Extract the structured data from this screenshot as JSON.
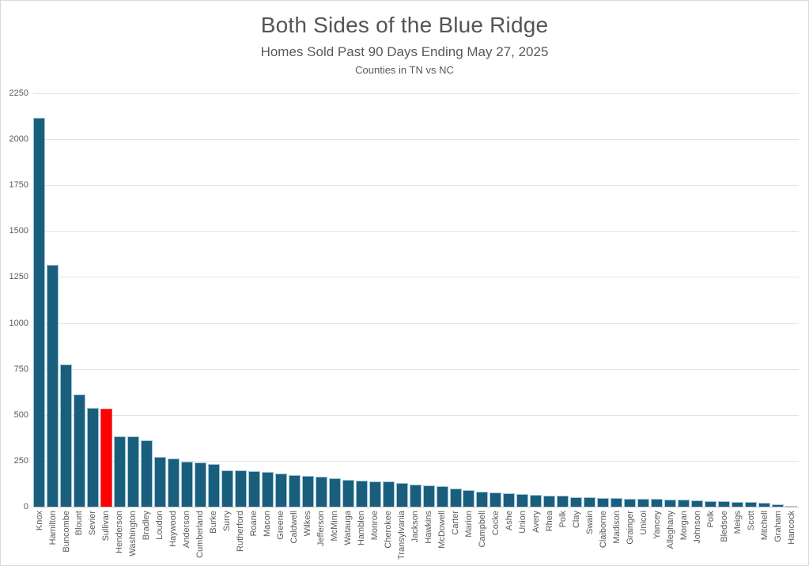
{
  "header": {
    "title": "Both Sides of the Blue Ridge",
    "subtitle": "Homes Sold Past 90 Days Ending May 27, 2025",
    "subtitle2": "Counties in TN vs NC"
  },
  "colors": {
    "bar_fill": "#1A5E7D",
    "bar_border": "#9EC5D6",
    "highlight_fill": "#FF0000",
    "gridline": "#E3E3E3",
    "axis_line": "#C9C9C9",
    "text": "#595959",
    "background": "#FFFFFF"
  },
  "chart_data": {
    "type": "bar",
    "title": "Both Sides of the Blue Ridge",
    "subtitle": "Homes Sold Past 90 Days Ending May 27, 2025",
    "note": "Counties in TN vs NC",
    "xlabel": "",
    "ylabel": "",
    "ylim": [
      0,
      2250
    ],
    "yticks": [
      0,
      250,
      500,
      750,
      1000,
      1250,
      1500,
      1750,
      2000,
      2250
    ],
    "grid": "horizontal",
    "legend_position": "none",
    "highlighted_category": "Sullivan",
    "highlight_index": 5,
    "categories": [
      "Knox",
      "Hamilton",
      "Buncombe",
      "Blount",
      "Sevier",
      "Sullivan",
      "Henderson",
      "Washington",
      "Bradley",
      "Loudon",
      "Haywood",
      "Anderson",
      "Cumberland",
      "Burke",
      "Surry",
      "Rutherford",
      "Roane",
      "Macon",
      "Greene",
      "Caldwell",
      "Wilkes",
      "Jefferson",
      "McMinn",
      "Watauga",
      "Hamblen",
      "Monroe",
      "Cherokee",
      "Transylvania",
      "Jackson",
      "Hawkins",
      "McDowell",
      "Carter",
      "Marion",
      "Campbell",
      "Cocke",
      "Ashe",
      "Union",
      "Avery",
      "Rhea",
      "Polk",
      "Clay",
      "Swain",
      "Claiborne",
      "Madison",
      "Grainger",
      "Unicoi",
      "Yancey",
      "Alleghany",
      "Morgan",
      "Johnson",
      "Polk",
      "Bledsoe",
      "Meigs",
      "Scott",
      "Mitchell",
      "Graham",
      "Hancock"
    ],
    "values": [
      2115,
      1315,
      775,
      610,
      536,
      533,
      385,
      382,
      360,
      270,
      262,
      246,
      241,
      232,
      200,
      196,
      192,
      188,
      180,
      173,
      166,
      164,
      153,
      146,
      141,
      140,
      138,
      128,
      121,
      117,
      110,
      99,
      89,
      83,
      79,
      75,
      67,
      65,
      62,
      60,
      53,
      51,
      49,
      47,
      45,
      44,
      42,
      40,
      39,
      33,
      32,
      29,
      28,
      27,
      22,
      12,
      5
    ]
  }
}
